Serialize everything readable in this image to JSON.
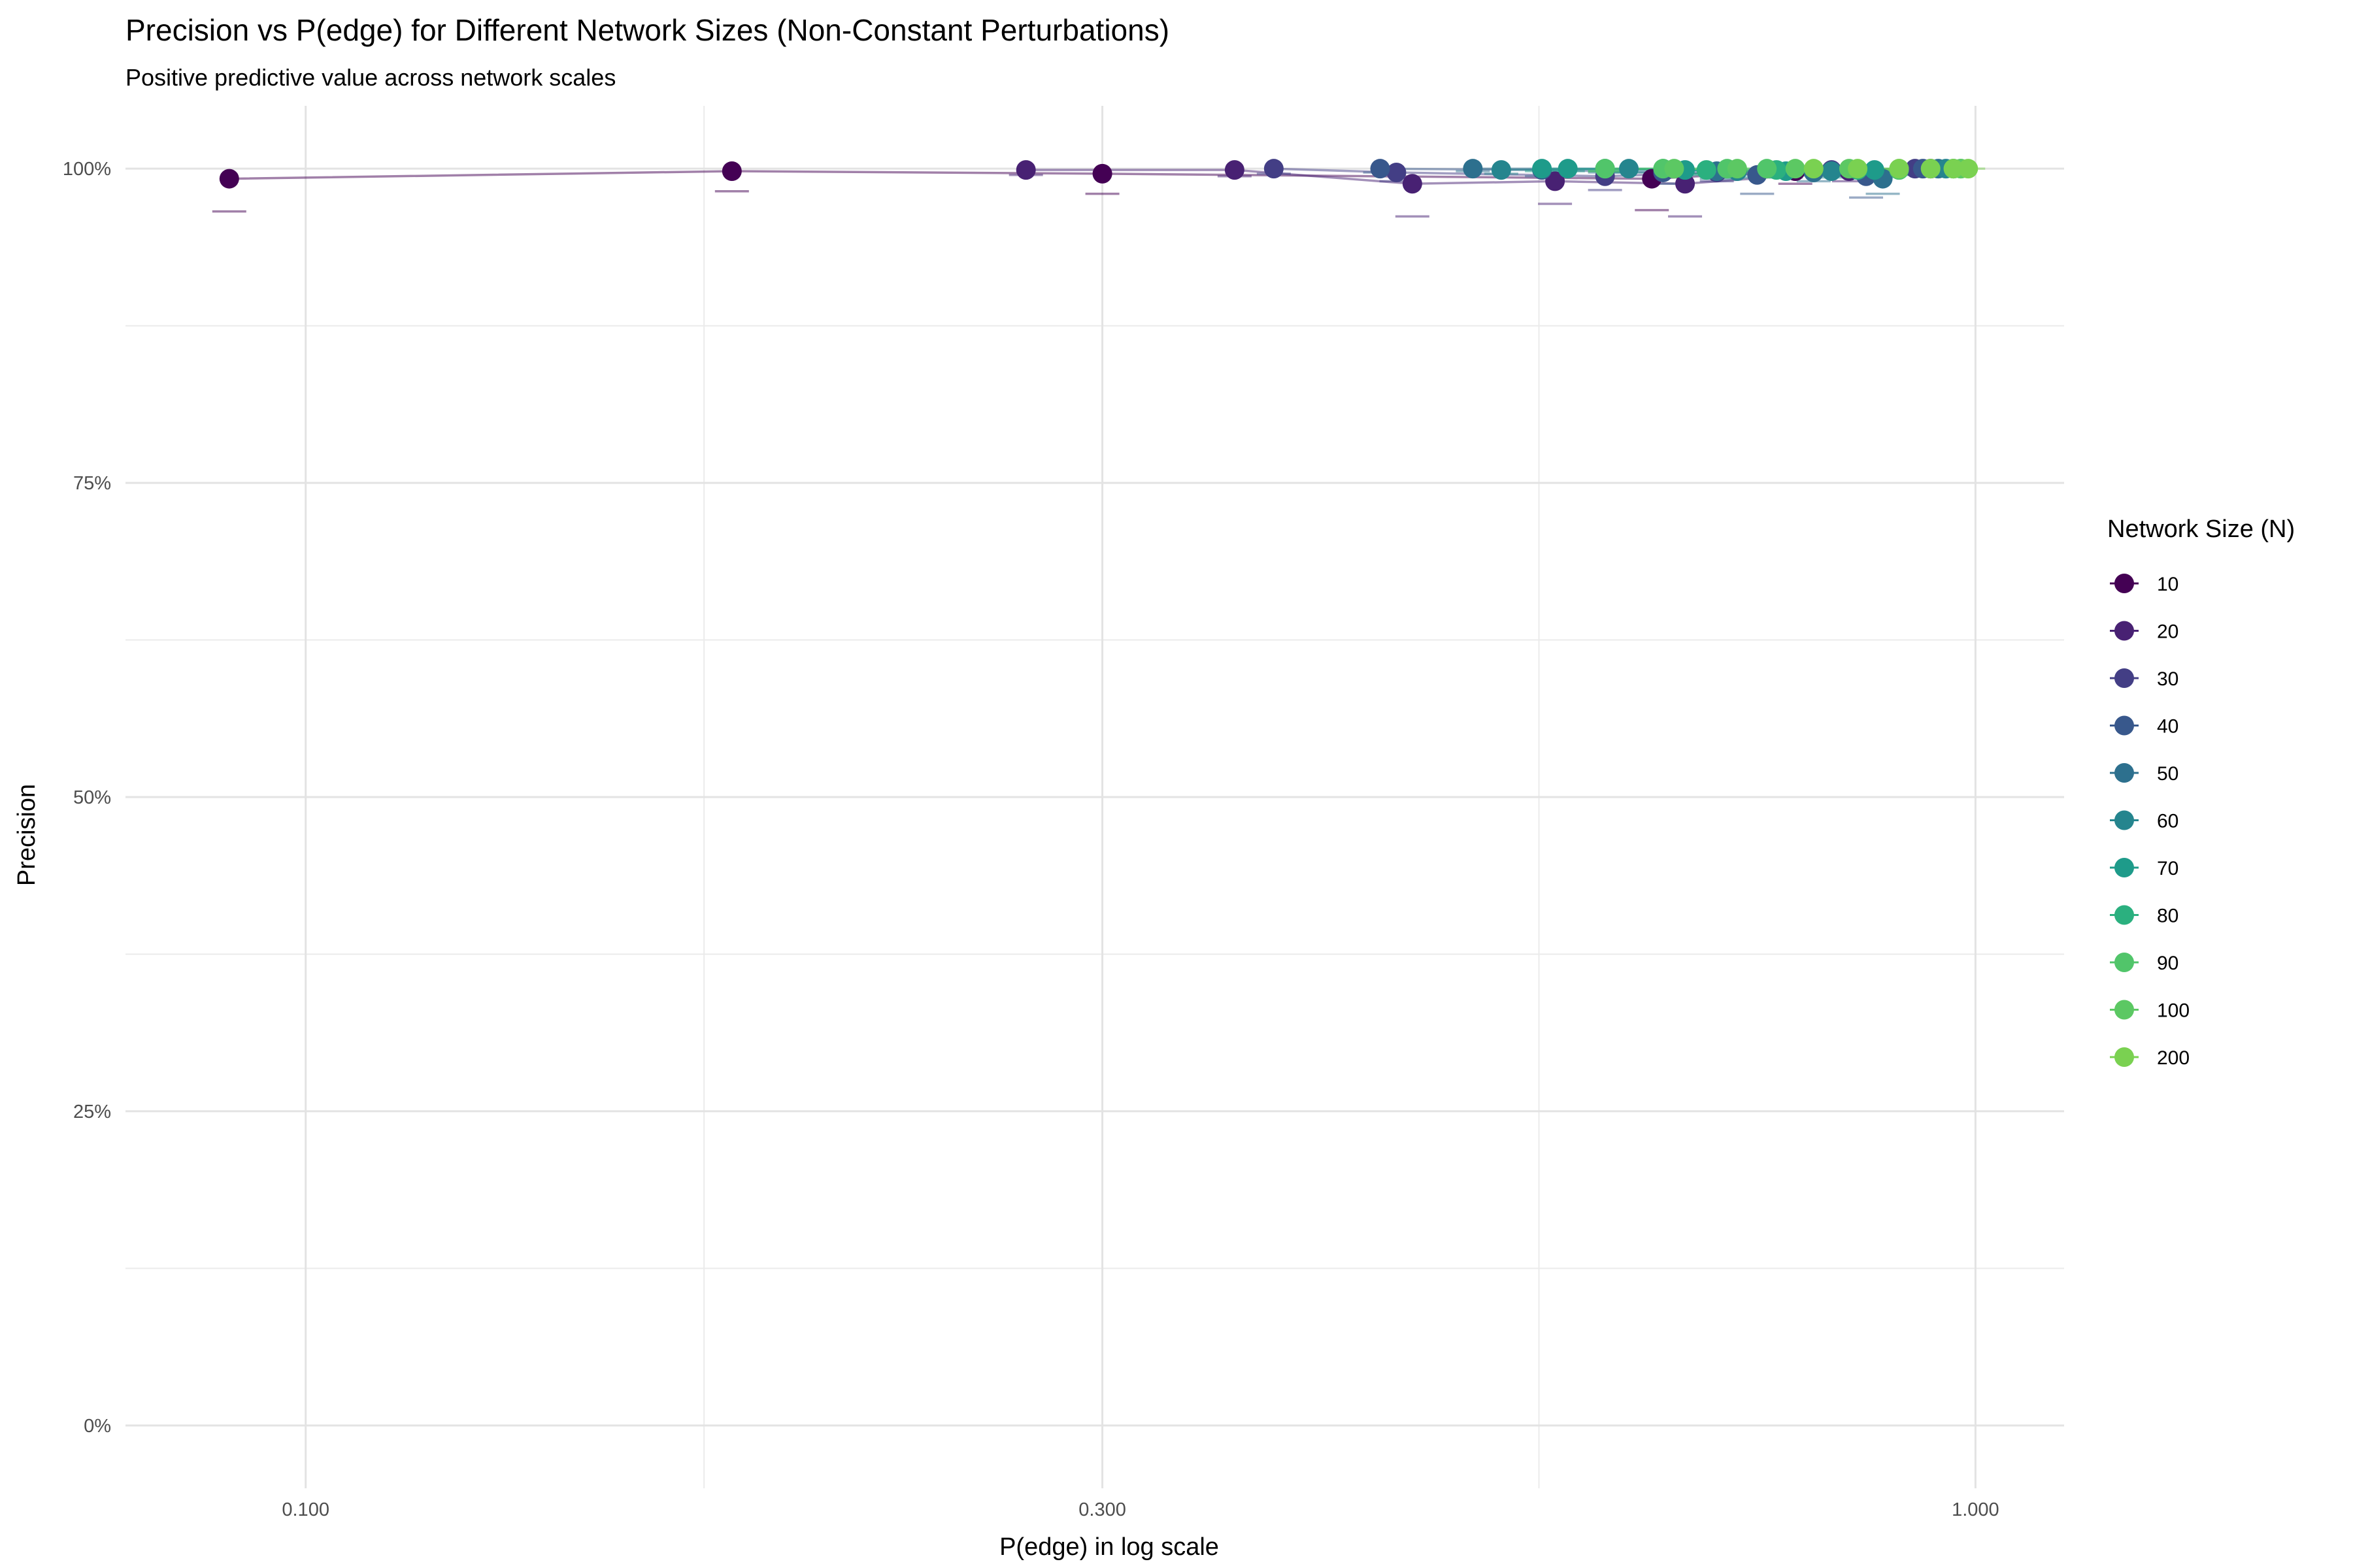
{
  "chart_data": {
    "type": "scatter",
    "title": "Precision vs P(edge) for Different Network Sizes (Non-Constant Perturbations)",
    "subtitle": "Positive predictive value across network scales",
    "xlabel": "P(edge) in log scale",
    "ylabel": "Precision",
    "x_scale": "log10",
    "xlim": [
      0.078,
      1.13
    ],
    "ylim": [
      -0.05,
      1.05
    ],
    "x_ticks": [
      0.1,
      0.3,
      1.0
    ],
    "x_tick_labels": [
      "0.100",
      "0.300",
      "1.000"
    ],
    "y_ticks": [
      0,
      0.25,
      0.5,
      0.75,
      1.0
    ],
    "y_tick_labels": [
      "0%",
      "25%",
      "50%",
      "75%",
      "100%"
    ],
    "grid": true,
    "legend": {
      "title": "Network Size (N)",
      "position": "right"
    },
    "series": [
      {
        "name": "10",
        "color": "#440154",
        "x": [
          0.09,
          0.18,
          0.3,
          0.64,
          0.78,
          0.94
        ],
        "y": [
          0.992,
          0.998,
          0.996,
          0.992,
          0.998,
          1.0
        ],
        "lower": [
          0.966,
          0.982,
          0.98,
          0.967,
          0.988,
          0.995
        ]
      },
      {
        "name": "20",
        "color": "#482173",
        "x": [
          0.27,
          0.36,
          0.46,
          0.56,
          0.67,
          0.84
        ],
        "y": [
          0.999,
          0.999,
          0.988,
          0.99,
          0.988,
          0.998
        ],
        "lower": [
          0.995,
          0.994,
          0.962,
          0.972,
          0.962,
          0.99
        ]
      },
      {
        "name": "30",
        "color": "#433E85",
        "x": [
          0.38,
          0.45,
          0.6,
          0.7,
          0.82,
          0.92
        ],
        "y": [
          1.0,
          0.997,
          0.994,
          0.997,
          0.999,
          1.0
        ],
        "lower": [
          0.996,
          0.99,
          0.983,
          0.99,
          0.995,
          0.998
        ]
      },
      {
        "name": "40",
        "color": "#38588C",
        "x": [
          0.44,
          0.55,
          0.65,
          0.74,
          0.86,
          0.93
        ],
        "y": [
          1.0,
          0.999,
          0.997,
          0.995,
          0.994,
          1.0
        ],
        "lower": [
          0.997,
          0.994,
          0.988,
          0.98,
          0.977,
          0.998
        ]
      },
      {
        "name": "50",
        "color": "#2D708E",
        "x": [
          0.5,
          0.6,
          0.7,
          0.8,
          0.88,
          0.95
        ],
        "y": [
          1.0,
          1.0,
          0.998,
          0.997,
          0.992,
          1.0
        ],
        "lower": [
          0.998,
          0.997,
          0.992,
          0.99,
          0.98,
          0.999
        ]
      },
      {
        "name": "60",
        "color": "#25858E",
        "x": [
          0.52,
          0.62,
          0.72,
          0.82,
          0.9,
          0.96
        ],
        "y": [
          0.999,
          1.0,
          0.998,
          0.998,
          0.999,
          1.0
        ],
        "lower": [
          0.996,
          0.997,
          0.993,
          0.993,
          0.995,
          0.999
        ]
      },
      {
        "name": "70",
        "color": "#1E9B8A",
        "x": [
          0.55,
          0.57,
          0.67,
          0.77,
          0.87,
          0.97
        ],
        "y": [
          1.0,
          1.0,
          0.999,
          0.998,
          0.999,
          1.0
        ],
        "lower": [
          0.998,
          0.998,
          0.995,
          0.993,
          0.996,
          0.999
        ]
      },
      {
        "name": "80",
        "color": "#2BB07F",
        "x": [
          0.6,
          0.65,
          0.69,
          0.76,
          0.85,
          0.97
        ],
        "y": [
          1.0,
          1.0,
          0.999,
          0.999,
          0.999,
          1.0
        ],
        "lower": [
          0.998,
          0.998,
          0.996,
          0.996,
          0.997,
          0.999
        ]
      },
      {
        "name": "90",
        "color": "#51C56A",
        "x": [
          0.6,
          0.65,
          0.71,
          0.75,
          0.9,
          0.98
        ],
        "y": [
          1.0,
          1.0,
          1.0,
          1.0,
          0.999,
          1.0
        ],
        "lower": [
          0.998,
          0.998,
          0.998,
          0.998,
          0.997,
          0.999
        ]
      },
      {
        "name": "100",
        "color": "#5CC863",
        "x": [
          0.66,
          0.72,
          0.78,
          0.84,
          0.9,
          0.98
        ],
        "y": [
          1.0,
          1.0,
          1.0,
          1.0,
          1.0,
          1.0
        ],
        "lower": [
          0.998,
          0.998,
          0.998,
          0.998,
          0.999,
          0.999
        ]
      },
      {
        "name": "200",
        "color": "#7AD151",
        "x": [
          0.8,
          0.85,
          0.9,
          0.94,
          0.97,
          0.99
        ],
        "y": [
          1.0,
          1.0,
          1.0,
          1.0,
          1.0,
          1.0
        ],
        "lower": [
          0.999,
          0.999,
          0.999,
          0.999,
          1.0,
          1.0
        ]
      }
    ]
  }
}
